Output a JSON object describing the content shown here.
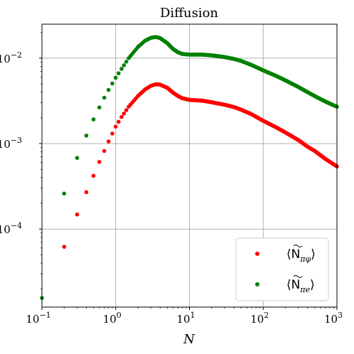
{
  "chart_data": {
    "type": "scatter",
    "title": "Diffusion",
    "xlabel": "N",
    "ylabel": "",
    "xscale": "log",
    "yscale": "log",
    "xlim": [
      0.1,
      1000
    ],
    "ylim": [
      1.22e-05,
      0.025
    ],
    "grid": true,
    "legend_position": "lower-right",
    "x_ticks": [
      {
        "value": 0.1,
        "base": "10",
        "exp": "−1"
      },
      {
        "value": 1,
        "base": "10",
        "exp": "0"
      },
      {
        "value": 10,
        "base": "10",
        "exp": "1"
      },
      {
        "value": 100,
        "base": "10",
        "exp": "2"
      },
      {
        "value": 1000,
        "base": "10",
        "exp": "3"
      }
    ],
    "y_ticks": [
      {
        "value": 0.0001,
        "base": "10",
        "exp": "−4"
      },
      {
        "value": 0.001,
        "base": "10",
        "exp": "−3"
      },
      {
        "value": 0.01,
        "base": "10",
        "exp": "−2"
      }
    ],
    "series": [
      {
        "name": "⟨Ñπφ⟩",
        "legend_main": "N",
        "legend_sub": "πφ",
        "color": "#ff0000",
        "points": [
          [
            0.2,
            6.2e-05
          ],
          [
            0.3,
            0.000148
          ],
          [
            0.4,
            0.00027
          ],
          [
            0.5,
            0.00042
          ],
          [
            0.6,
            0.00061
          ],
          [
            0.7,
            0.00082
          ],
          [
            0.8,
            0.00106
          ],
          [
            0.9,
            0.00131
          ],
          [
            1.0,
            0.00158
          ],
          [
            1.2,
            0.00205
          ],
          [
            1.5,
            0.0027
          ],
          [
            2.0,
            0.0036
          ],
          [
            2.5,
            0.0043
          ],
          [
            3.0,
            0.00475
          ],
          [
            3.5,
            0.00495
          ],
          [
            4.0,
            0.0049
          ],
          [
            5.0,
            0.0045
          ],
          [
            6.0,
            0.00395
          ],
          [
            7.0,
            0.0036
          ],
          [
            8.0,
            0.0034
          ],
          [
            10,
            0.00325
          ],
          [
            15,
            0.00318
          ],
          [
            20,
            0.00305
          ],
          [
            30,
            0.00285
          ],
          [
            40,
            0.00268
          ],
          [
            50,
            0.0025
          ],
          [
            70,
            0.0022
          ],
          [
            100,
            0.00185
          ],
          [
            150,
            0.00155
          ],
          [
            200,
            0.00135
          ],
          [
            300,
            0.0011
          ],
          [
            400,
            0.00092
          ],
          [
            500,
            0.00082
          ],
          [
            700,
            0.00066
          ],
          [
            1000,
            0.00054
          ]
        ]
      },
      {
        "name": "⟨Ñπe⟩",
        "legend_main": "N",
        "legend_sub": "πe",
        "color": "#008000",
        "points": [
          [
            0.1,
            1.56e-05
          ],
          [
            0.2,
            0.00026
          ],
          [
            0.3,
            0.00068
          ],
          [
            0.4,
            0.00124
          ],
          [
            0.5,
            0.00192
          ],
          [
            0.6,
            0.00265
          ],
          [
            0.7,
            0.00345
          ],
          [
            0.8,
            0.00425
          ],
          [
            0.9,
            0.00505
          ],
          [
            1.0,
            0.0059
          ],
          [
            1.2,
            0.0075
          ],
          [
            1.5,
            0.01
          ],
          [
            2.0,
            0.0135
          ],
          [
            2.5,
            0.016
          ],
          [
            3.0,
            0.0173
          ],
          [
            3.5,
            0.0177
          ],
          [
            4.0,
            0.0172
          ],
          [
            5.0,
            0.015
          ],
          [
            6.0,
            0.0128
          ],
          [
            7.0,
            0.0117
          ],
          [
            8.0,
            0.0112
          ],
          [
            10,
            0.011
          ],
          [
            15,
            0.011
          ],
          [
            20,
            0.0108
          ],
          [
            30,
            0.0103
          ],
          [
            40,
            0.0098
          ],
          [
            50,
            0.0093
          ],
          [
            70,
            0.0083
          ],
          [
            100,
            0.0072
          ],
          [
            150,
            0.0062
          ],
          [
            200,
            0.0055
          ],
          [
            300,
            0.0046
          ],
          [
            400,
            0.004
          ],
          [
            500,
            0.0036
          ],
          [
            700,
            0.0031
          ],
          [
            1000,
            0.0027
          ]
        ]
      }
    ]
  }
}
